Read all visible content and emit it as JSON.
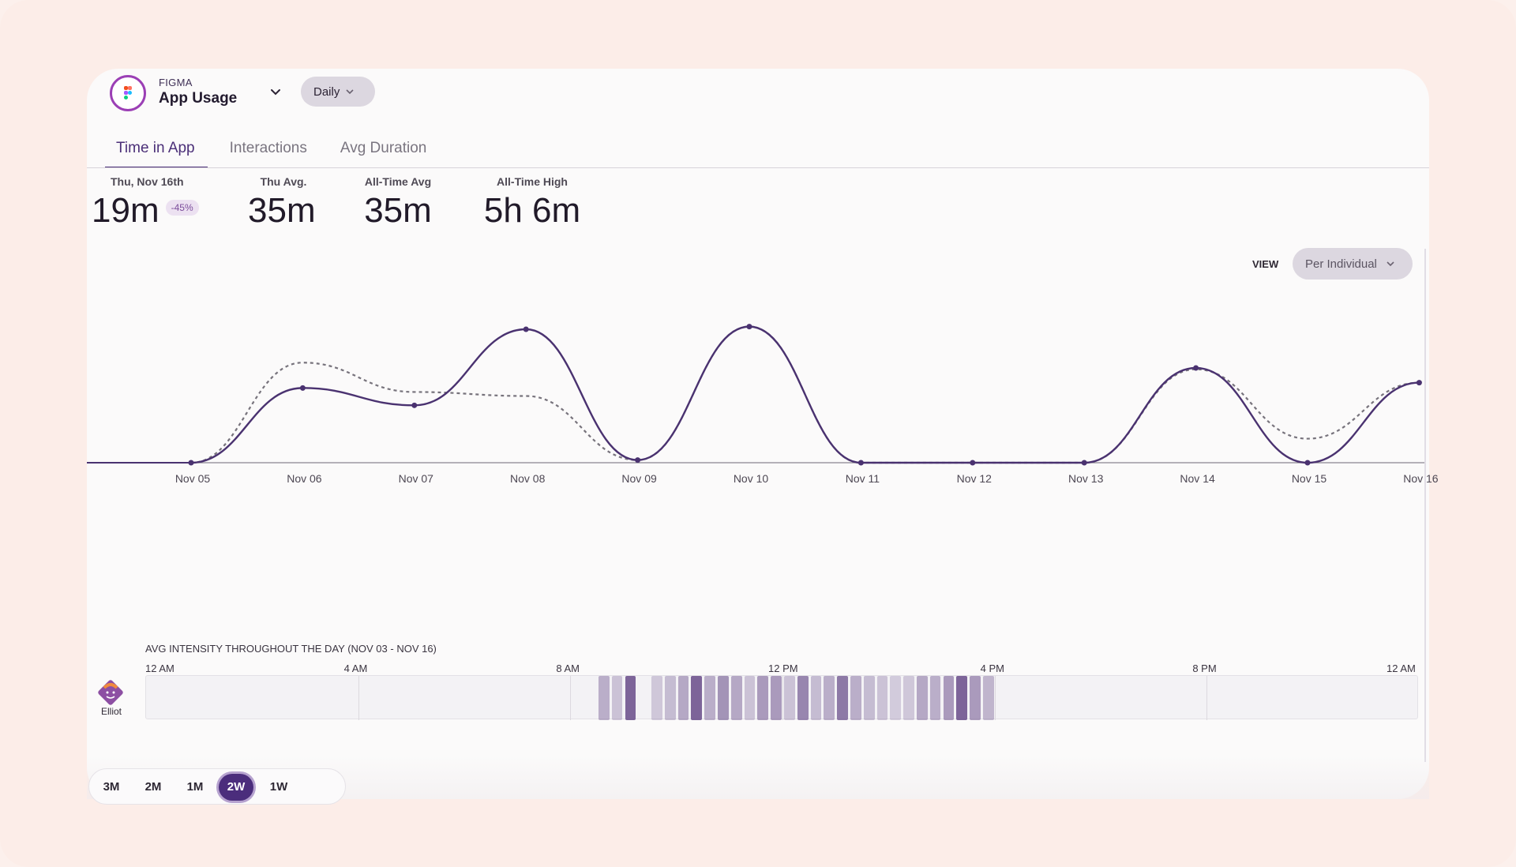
{
  "header": {
    "vendor": "FIGMA",
    "title": "App Usage",
    "period": "Daily"
  },
  "tabs": [
    {
      "label": "Time in App",
      "active": true
    },
    {
      "label": "Interactions",
      "active": false
    },
    {
      "label": "Avg Duration",
      "active": false
    }
  ],
  "stats": {
    "today": {
      "label": "Thu, Nov 16th",
      "value": "19m",
      "delta": "-45%"
    },
    "weekday_avg": {
      "label": "Thu Avg.",
      "value": "35m"
    },
    "all_time_avg": {
      "label": "All-Time Avg",
      "value": "35m"
    },
    "all_time_high": {
      "label": "All-Time High",
      "value": "5h 6m"
    }
  },
  "view": {
    "label": "VIEW",
    "selected": "Per Individual"
  },
  "chart_data": {
    "type": "line",
    "categories": [
      "Nov 05",
      "Nov 06",
      "Nov 07",
      "Nov 08",
      "Nov 09",
      "Nov 10",
      "Nov 11",
      "Nov 12",
      "Nov 13",
      "Nov 14",
      "Nov 15",
      "Nov 16"
    ],
    "series": [
      {
        "values": [
          0,
          0.56,
          0.43,
          1.0,
          0.02,
          1.02,
          0,
          0,
          0,
          0.71,
          0,
          0.6
        ],
        "style": "solid",
        "color": "#4a3270"
      },
      {
        "values": [
          0,
          0.75,
          0.53,
          0.5,
          0.02,
          1.02,
          0,
          0,
          0,
          0.7,
          0.18,
          0.6
        ],
        "style": "dashed",
        "color": "#77737c"
      }
    ],
    "ylim": [
      0,
      1.08
    ],
    "grid": false
  },
  "heatmap": {
    "title": "AVG INTENSITY THROUGHOUT THE DAY (NOV 03 - NOV 16)",
    "ticks": [
      "12 AM",
      "4 AM",
      "8 AM",
      "12 PM",
      "4 PM",
      "8 PM",
      "12 AM"
    ],
    "user": "Elliot",
    "hours_span": 24,
    "cells": [
      {
        "hour": 8.5,
        "level": 0.3
      },
      {
        "hour": 8.75,
        "level": 0.15
      },
      {
        "hour": 9.0,
        "level": 0.85
      },
      {
        "hour": 9.5,
        "level": 0.12
      },
      {
        "hour": 9.75,
        "level": 0.2
      },
      {
        "hour": 10.0,
        "level": 0.35
      },
      {
        "hour": 10.25,
        "level": 0.85
      },
      {
        "hour": 10.5,
        "level": 0.3
      },
      {
        "hour": 10.75,
        "level": 0.5
      },
      {
        "hour": 11.0,
        "level": 0.35
      },
      {
        "hour": 11.25,
        "level": 0.15
      },
      {
        "hour": 11.5,
        "level": 0.45
      },
      {
        "hour": 11.75,
        "level": 0.45
      },
      {
        "hour": 12.0,
        "level": 0.15
      },
      {
        "hour": 12.25,
        "level": 0.6
      },
      {
        "hour": 12.5,
        "level": 0.2
      },
      {
        "hour": 12.75,
        "level": 0.3
      },
      {
        "hour": 13.0,
        "level": 0.7
      },
      {
        "hour": 13.25,
        "level": 0.3
      },
      {
        "hour": 13.5,
        "level": 0.2
      },
      {
        "hour": 13.75,
        "level": 0.15
      },
      {
        "hour": 14.0,
        "level": 0.08
      },
      {
        "hour": 14.25,
        "level": 0.12
      },
      {
        "hour": 14.5,
        "level": 0.35
      },
      {
        "hour": 14.75,
        "level": 0.3
      },
      {
        "hour": 15.0,
        "level": 0.45
      },
      {
        "hour": 15.25,
        "level": 0.85
      },
      {
        "hour": 15.5,
        "level": 0.45
      },
      {
        "hour": 15.75,
        "level": 0.25
      }
    ]
  },
  "ranges": [
    {
      "label": "3M",
      "active": false
    },
    {
      "label": "2M",
      "active": false
    },
    {
      "label": "1M",
      "active": false
    },
    {
      "label": "2W",
      "active": true
    },
    {
      "label": "1W",
      "active": false
    }
  ]
}
